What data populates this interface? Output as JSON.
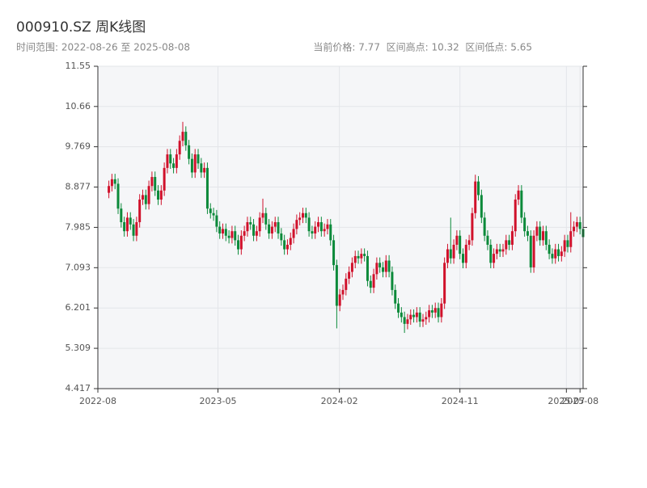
{
  "chart_data": {
    "type": "candlestick",
    "title": "000910.SZ 周K线图",
    "subtitle": "时间范围: 2022-08-26 至 2025-08-08",
    "stats": "当前价格: 7.77  区间高点: 10.32  区间低点: 5.65",
    "up_color": "#d0112b",
    "down_color": "#0b8a3a",
    "grid": true,
    "xlim": [
      "2022-08",
      "2025-08-08"
    ],
    "xticks": [
      "2022-08",
      "2023-05",
      "2024-02",
      "2024-11",
      "2025-07",
      "2025-08"
    ],
    "ylim": [
      4.417,
      11.55
    ],
    "yticks": [
      4.417,
      5.309,
      6.201,
      7.093,
      7.985,
      8.877,
      9.769,
      10.66,
      11.55
    ],
    "x": [
      "2022-08-26",
      "2022-09-02",
      "2022-09-09",
      "2022-09-16",
      "2022-09-23",
      "2022-09-30",
      "2022-10-07",
      "2022-10-14",
      "2022-10-21",
      "2022-10-28",
      "2022-11-04",
      "2022-11-11",
      "2022-11-18",
      "2022-11-25",
      "2022-12-02",
      "2022-12-09",
      "2022-12-16",
      "2022-12-23",
      "2022-12-30",
      "2023-01-06",
      "2023-01-13",
      "2023-01-20",
      "2023-01-27",
      "2023-02-03",
      "2023-02-10",
      "2023-02-17",
      "2023-02-24",
      "2023-03-03",
      "2023-03-10",
      "2023-03-17",
      "2023-03-24",
      "2023-03-31",
      "2023-04-07",
      "2023-04-14",
      "2023-04-21",
      "2023-04-28",
      "2023-05-05",
      "2023-05-12",
      "2023-05-19",
      "2023-05-26",
      "2023-06-02",
      "2023-06-09",
      "2023-06-16",
      "2023-06-23",
      "2023-06-30",
      "2023-07-07",
      "2023-07-14",
      "2023-07-21",
      "2023-07-28",
      "2023-08-04",
      "2023-08-11",
      "2023-08-18",
      "2023-08-25",
      "2023-09-01",
      "2023-09-08",
      "2023-09-15",
      "2023-09-22",
      "2023-09-29",
      "2023-10-06",
      "2023-10-13",
      "2023-10-20",
      "2023-10-27",
      "2023-11-03",
      "2023-11-10",
      "2023-11-17",
      "2023-11-24",
      "2023-12-01",
      "2023-12-08",
      "2023-12-15",
      "2023-12-22",
      "2023-12-29",
      "2024-01-05",
      "2024-01-12",
      "2024-01-19",
      "2024-01-26",
      "2024-02-02",
      "2024-02-09",
      "2024-02-16",
      "2024-02-23",
      "2024-03-01",
      "2024-03-08",
      "2024-03-15",
      "2024-03-22",
      "2024-03-29",
      "2024-04-05",
      "2024-04-12",
      "2024-04-19",
      "2024-04-26",
      "2024-05-03",
      "2024-05-10",
      "2024-05-17",
      "2024-05-24",
      "2024-05-31",
      "2024-06-07",
      "2024-06-14",
      "2024-06-21",
      "2024-06-28",
      "2024-07-05",
      "2024-07-12",
      "2024-07-19",
      "2024-07-26",
      "2024-08-02",
      "2024-08-09",
      "2024-08-16",
      "2024-08-23",
      "2024-08-30",
      "2024-09-06",
      "2024-09-13",
      "2024-09-20",
      "2024-09-27",
      "2024-10-04",
      "2024-10-11",
      "2024-10-18",
      "2024-10-25",
      "2024-11-01",
      "2024-11-08",
      "2024-11-15",
      "2024-11-22",
      "2024-11-29",
      "2024-12-06",
      "2024-12-13",
      "2024-12-20",
      "2024-12-27",
      "2025-01-03",
      "2025-01-10",
      "2025-01-17",
      "2025-01-24",
      "2025-01-31",
      "2025-02-07",
      "2025-02-14",
      "2025-02-21",
      "2025-02-28",
      "2025-03-07",
      "2025-03-14",
      "2025-03-21",
      "2025-03-28",
      "2025-04-04",
      "2025-04-11",
      "2025-04-18",
      "2025-04-25",
      "2025-05-02",
      "2025-05-09",
      "2025-05-16",
      "2025-05-23",
      "2025-05-30",
      "2025-06-06",
      "2025-06-13",
      "2025-06-20",
      "2025-06-27",
      "2025-07-04",
      "2025-07-11",
      "2025-07-18",
      "2025-07-25",
      "2025-08-01",
      "2025-08-08"
    ],
    "open": [
      8.75,
      8.9,
      9.05,
      8.95,
      8.4,
      8.1,
      7.9,
      8.2,
      8.05,
      7.8,
      8.1,
      8.6,
      8.7,
      8.5,
      8.9,
      9.1,
      8.8,
      8.6,
      8.8,
      9.3,
      9.6,
      9.4,
      9.3,
      9.6,
      9.9,
      10.1,
      9.8,
      9.5,
      9.2,
      9.6,
      9.4,
      9.2,
      9.3,
      8.4,
      8.3,
      8.25,
      8.0,
      7.85,
      7.95,
      7.8,
      7.75,
      7.9,
      7.7,
      7.5,
      7.8,
      7.9,
      8.1,
      8.05,
      7.8,
      7.9,
      8.2,
      8.3,
      8.05,
      7.85,
      8.0,
      8.1,
      7.85,
      7.7,
      7.5,
      7.6,
      7.75,
      7.95,
      8.15,
      8.2,
      8.3,
      8.2,
      7.9,
      7.85,
      8.0,
      8.1,
      7.9,
      7.95,
      8.05,
      7.7,
      7.15,
      6.25,
      6.5,
      6.6,
      6.85,
      7.0,
      7.2,
      7.35,
      7.3,
      7.4,
      7.35,
      6.8,
      6.65,
      6.95,
      7.2,
      7.1,
      7.0,
      7.25,
      7.0,
      6.6,
      6.3,
      6.1,
      6.0,
      5.85,
      5.95,
      6.05,
      6.0,
      6.1,
      5.9,
      5.95,
      6.0,
      6.15,
      6.1,
      6.2,
      6.0,
      6.3,
      7.2,
      7.5,
      7.3,
      7.6,
      7.8,
      7.4,
      7.2,
      7.6,
      7.7,
      8.3,
      9.0,
      8.7,
      8.2,
      7.8,
      7.6,
      7.2,
      7.4,
      7.5,
      7.45,
      7.5,
      7.7,
      7.6,
      7.9,
      8.6,
      8.8,
      8.2,
      7.9,
      7.8,
      7.1,
      7.8,
      8.0,
      7.7,
      7.9,
      7.6,
      7.4,
      7.3,
      7.5,
      7.35,
      7.45,
      7.7,
      7.55,
      7.9,
      8.0,
      8.1,
      7.95
    ],
    "high": [
      9.02,
      9.17,
      9.17,
      9.07,
      8.52,
      8.22,
      8.32,
      8.32,
      8.17,
      8.22,
      8.72,
      8.82,
      8.82,
      9.02,
      9.22,
      9.22,
      8.92,
      8.92,
      9.42,
      9.72,
      9.72,
      9.52,
      9.72,
      10.02,
      10.32,
      10.22,
      9.92,
      9.62,
      9.72,
      9.72,
      9.52,
      9.42,
      9.42,
      8.52,
      8.42,
      8.37,
      8.12,
      8.07,
      8.07,
      7.92,
      8.02,
      8.02,
      7.82,
      7.92,
      8.02,
      8.22,
      8.22,
      8.17,
      8.02,
      8.32,
      8.62,
      8.42,
      8.17,
      8.12,
      8.22,
      8.22,
      7.97,
      7.82,
      7.72,
      7.87,
      8.07,
      8.27,
      8.32,
      8.42,
      8.42,
      8.32,
      8.02,
      8.12,
      8.22,
      8.22,
      8.07,
      8.17,
      8.17,
      7.82,
      7.27,
      6.62,
      6.72,
      6.97,
      7.12,
      7.32,
      7.47,
      7.47,
      7.52,
      7.52,
      7.47,
      6.92,
      7.07,
      7.32,
      7.32,
      7.22,
      7.37,
      7.37,
      7.12,
      6.72,
      6.42,
      6.22,
      6.12,
      6.07,
      6.17,
      6.17,
      6.22,
      6.22,
      6.07,
      6.12,
      6.27,
      6.27,
      6.32,
      6.32,
      6.42,
      7.32,
      7.62,
      8.2,
      7.72,
      7.92,
      7.92,
      7.52,
      7.72,
      7.82,
      8.42,
      9.15,
      9.12,
      8.82,
      8.32,
      7.92,
      7.72,
      7.52,
      7.62,
      7.62,
      7.62,
      7.82,
      7.82,
      8.02,
      8.72,
      8.92,
      8.92,
      8.32,
      8.02,
      7.92,
      7.92,
      8.12,
      8.12,
      8.02,
      8.02,
      7.72,
      7.52,
      7.62,
      7.62,
      7.57,
      7.82,
      7.82,
      8.32,
      8.12,
      8.22,
      8.22,
      8.07
    ],
    "low": [
      8.63,
      8.78,
      8.83,
      8.28,
      7.98,
      7.78,
      7.78,
      7.93,
      7.68,
      7.68,
      7.98,
      8.48,
      8.38,
      8.38,
      8.78,
      8.68,
      8.48,
      8.48,
      8.68,
      9.18,
      9.28,
      9.18,
      9.18,
      9.48,
      9.78,
      9.68,
      9.38,
      9.08,
      9.08,
      9.28,
      9.08,
      9.08,
      8.28,
      8.18,
      8.13,
      7.88,
      7.73,
      7.73,
      7.68,
      7.63,
      7.63,
      7.58,
      7.38,
      7.38,
      7.68,
      7.78,
      7.93,
      7.68,
      7.68,
      7.78,
      8.08,
      7.93,
      7.73,
      7.73,
      7.88,
      7.73,
      7.58,
      7.38,
      7.38,
      7.48,
      7.63,
      7.83,
      8.03,
      8.08,
      8.08,
      7.78,
      7.73,
      7.73,
      7.88,
      7.78,
      7.78,
      7.83,
      7.58,
      7.03,
      5.75,
      6.13,
      6.38,
      6.48,
      6.73,
      6.88,
      7.08,
      7.18,
      7.18,
      7.23,
      6.68,
      6.53,
      6.53,
      6.83,
      6.98,
      6.88,
      6.88,
      6.88,
      6.48,
      6.18,
      5.98,
      5.88,
      5.65,
      5.73,
      5.83,
      5.88,
      5.88,
      5.78,
      5.78,
      5.83,
      5.88,
      5.98,
      5.98,
      5.88,
      5.88,
      6.18,
      7.08,
      7.18,
      7.18,
      7.48,
      7.28,
      7.08,
      7.08,
      7.48,
      7.58,
      8.18,
      8.58,
      8.08,
      7.68,
      7.48,
      7.08,
      7.08,
      7.28,
      7.33,
      7.33,
      7.38,
      7.48,
      7.48,
      7.78,
      8.48,
      8.08,
      7.78,
      7.68,
      6.98,
      6.98,
      7.68,
      7.58,
      7.58,
      7.48,
      7.28,
      7.18,
      7.18,
      7.23,
      7.23,
      7.33,
      7.43,
      7.43,
      7.78,
      7.88,
      7.83,
      7.65
    ],
    "close": [
      8.9,
      9.05,
      8.95,
      8.4,
      8.1,
      7.9,
      8.2,
      8.05,
      7.8,
      8.1,
      8.6,
      8.7,
      8.5,
      8.9,
      9.1,
      8.8,
      8.6,
      8.8,
      9.3,
      9.6,
      9.4,
      9.3,
      9.6,
      9.9,
      10.1,
      9.8,
      9.5,
      9.2,
      9.6,
      9.4,
      9.2,
      9.3,
      8.4,
      8.3,
      8.25,
      8.0,
      7.85,
      7.95,
      7.8,
      7.75,
      7.9,
      7.7,
      7.5,
      7.8,
      7.9,
      8.1,
      8.05,
      7.8,
      7.9,
      8.2,
      8.3,
      8.05,
      7.85,
      8.0,
      8.1,
      7.85,
      7.7,
      7.5,
      7.6,
      7.75,
      7.95,
      8.15,
      8.2,
      8.3,
      8.2,
      7.9,
      7.85,
      8.0,
      8.1,
      7.9,
      7.95,
      8.05,
      7.7,
      7.15,
      6.25,
      6.5,
      6.6,
      6.85,
      7.0,
      7.2,
      7.35,
      7.3,
      7.4,
      7.35,
      6.8,
      6.65,
      6.95,
      7.2,
      7.1,
      7.0,
      7.25,
      7.0,
      6.6,
      6.3,
      6.1,
      6.0,
      5.85,
      5.95,
      6.05,
      6.0,
      6.1,
      5.9,
      5.95,
      6.0,
      6.15,
      6.1,
      6.2,
      6.0,
      6.3,
      7.2,
      7.5,
      7.3,
      7.6,
      7.8,
      7.4,
      7.2,
      7.6,
      7.7,
      8.3,
      9.0,
      8.7,
      8.2,
      7.8,
      7.6,
      7.2,
      7.4,
      7.5,
      7.45,
      7.5,
      7.7,
      7.6,
      7.9,
      8.6,
      8.8,
      8.2,
      7.9,
      7.8,
      7.1,
      7.8,
      8.0,
      7.7,
      7.9,
      7.6,
      7.4,
      7.3,
      7.5,
      7.35,
      7.45,
      7.7,
      7.55,
      7.9,
      8.0,
      8.1,
      7.95,
      7.77
    ]
  }
}
